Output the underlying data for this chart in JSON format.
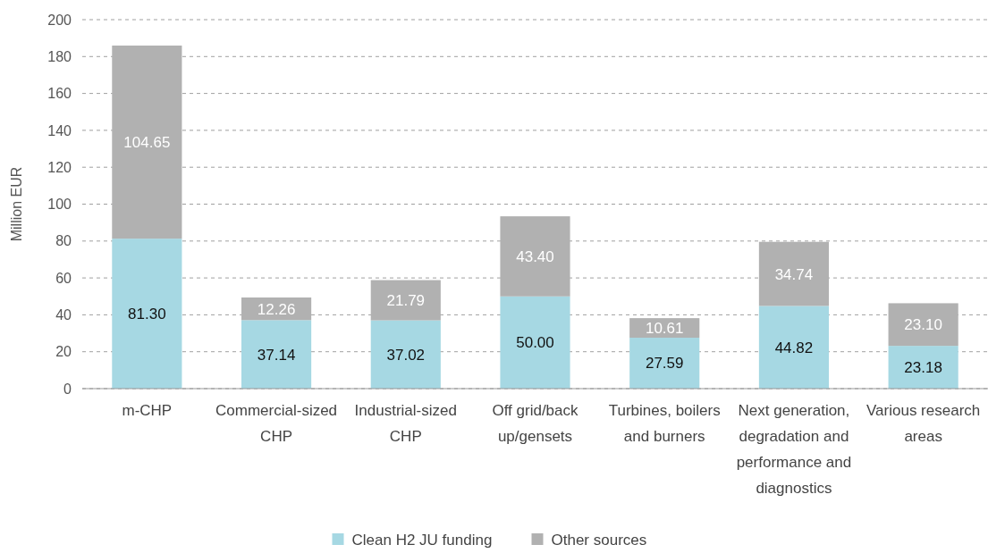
{
  "chart_data": {
    "type": "bar",
    "stacked": true,
    "ylabel": "Million EUR",
    "categories": [
      "m-CHP",
      "Commercial-sized CHP",
      "Industrial-sized CHP",
      "Off grid/back up/gensets",
      "Turbines, boilers and burners",
      "Next generation, degradation and performance and diagnostics",
      "Various research areas"
    ],
    "series": [
      {
        "name": "Clean H2 JU funding",
        "color": "#a6d8e3",
        "values": [
          81.3,
          37.14,
          37.02,
          50.0,
          27.59,
          44.82,
          23.18
        ],
        "value_labels": [
          "81.30",
          "37.14",
          "37.02",
          "50.00",
          "27.59",
          "44.82",
          "23.18"
        ]
      },
      {
        "name": "Other sources",
        "color": "#b1b1b1",
        "values": [
          104.65,
          12.26,
          21.79,
          43.4,
          10.61,
          34.74,
          23.1
        ],
        "value_labels": [
          "104.65",
          "12.26",
          "21.79",
          "43.40",
          "10.61",
          "34.74",
          "23.10"
        ]
      }
    ],
    "ylim": [
      0,
      200
    ],
    "yticks": [
      0,
      20,
      40,
      60,
      80,
      100,
      120,
      140,
      160,
      180,
      200
    ],
    "grid": "y",
    "legend": "bottom"
  }
}
